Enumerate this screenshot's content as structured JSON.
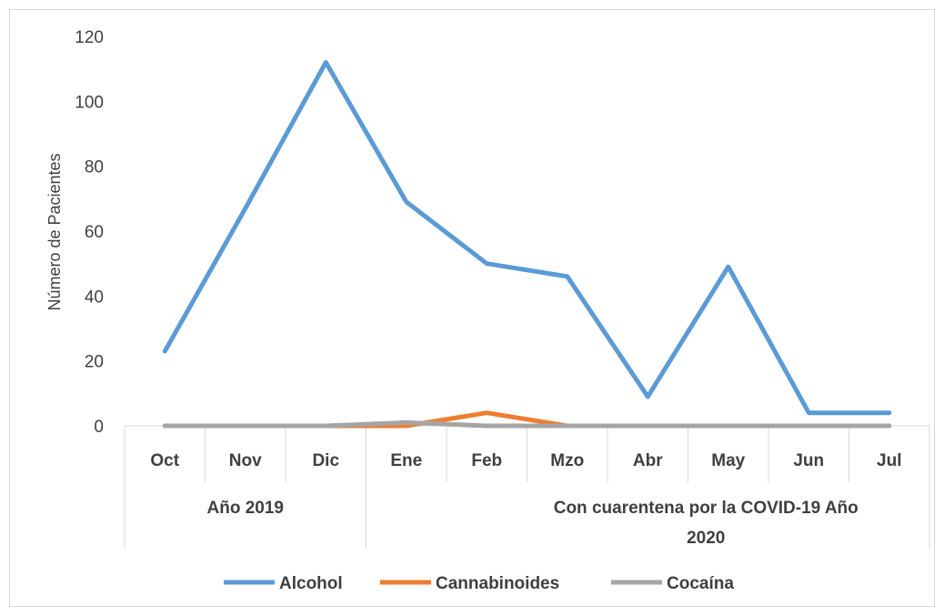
{
  "chart_data": {
    "type": "line",
    "ylabel": "Número de Pacientes",
    "ylim": [
      0,
      120
    ],
    "yticks": [
      "0",
      "20",
      "40",
      "60",
      "80",
      "100",
      "120"
    ],
    "categories": [
      "Oct",
      "Nov",
      "Dic",
      "Ene",
      "Feb",
      "Mzo",
      "Abr",
      "May",
      "Jun",
      "Jul"
    ],
    "groups": [
      {
        "label": "Año 2019",
        "categories": [
          "Oct",
          "Nov",
          "Dic"
        ]
      },
      {
        "label_lines": [
          "Con cuarentena por la COVID-19 Año",
          "2020"
        ],
        "categories": [
          "Ene",
          "Feb",
          "Mzo",
          "Abr",
          "May",
          "Jun",
          "Jul"
        ]
      }
    ],
    "series": [
      {
        "name": "Alcohol",
        "color": "#5B9BD5",
        "values": [
          23,
          67,
          112,
          69,
          50,
          46,
          9,
          49,
          4,
          4
        ]
      },
      {
        "name": "Cannabinoides",
        "color": "#ED7D31",
        "values": [
          0,
          0,
          0,
          0,
          4,
          0,
          0,
          0,
          0,
          0
        ]
      },
      {
        "name": "Cocaína",
        "color": "#A5A5A5",
        "values": [
          0,
          0,
          0,
          1,
          0,
          0,
          0,
          0,
          0,
          0
        ]
      }
    ],
    "grid": false,
    "legend": "bottom"
  }
}
